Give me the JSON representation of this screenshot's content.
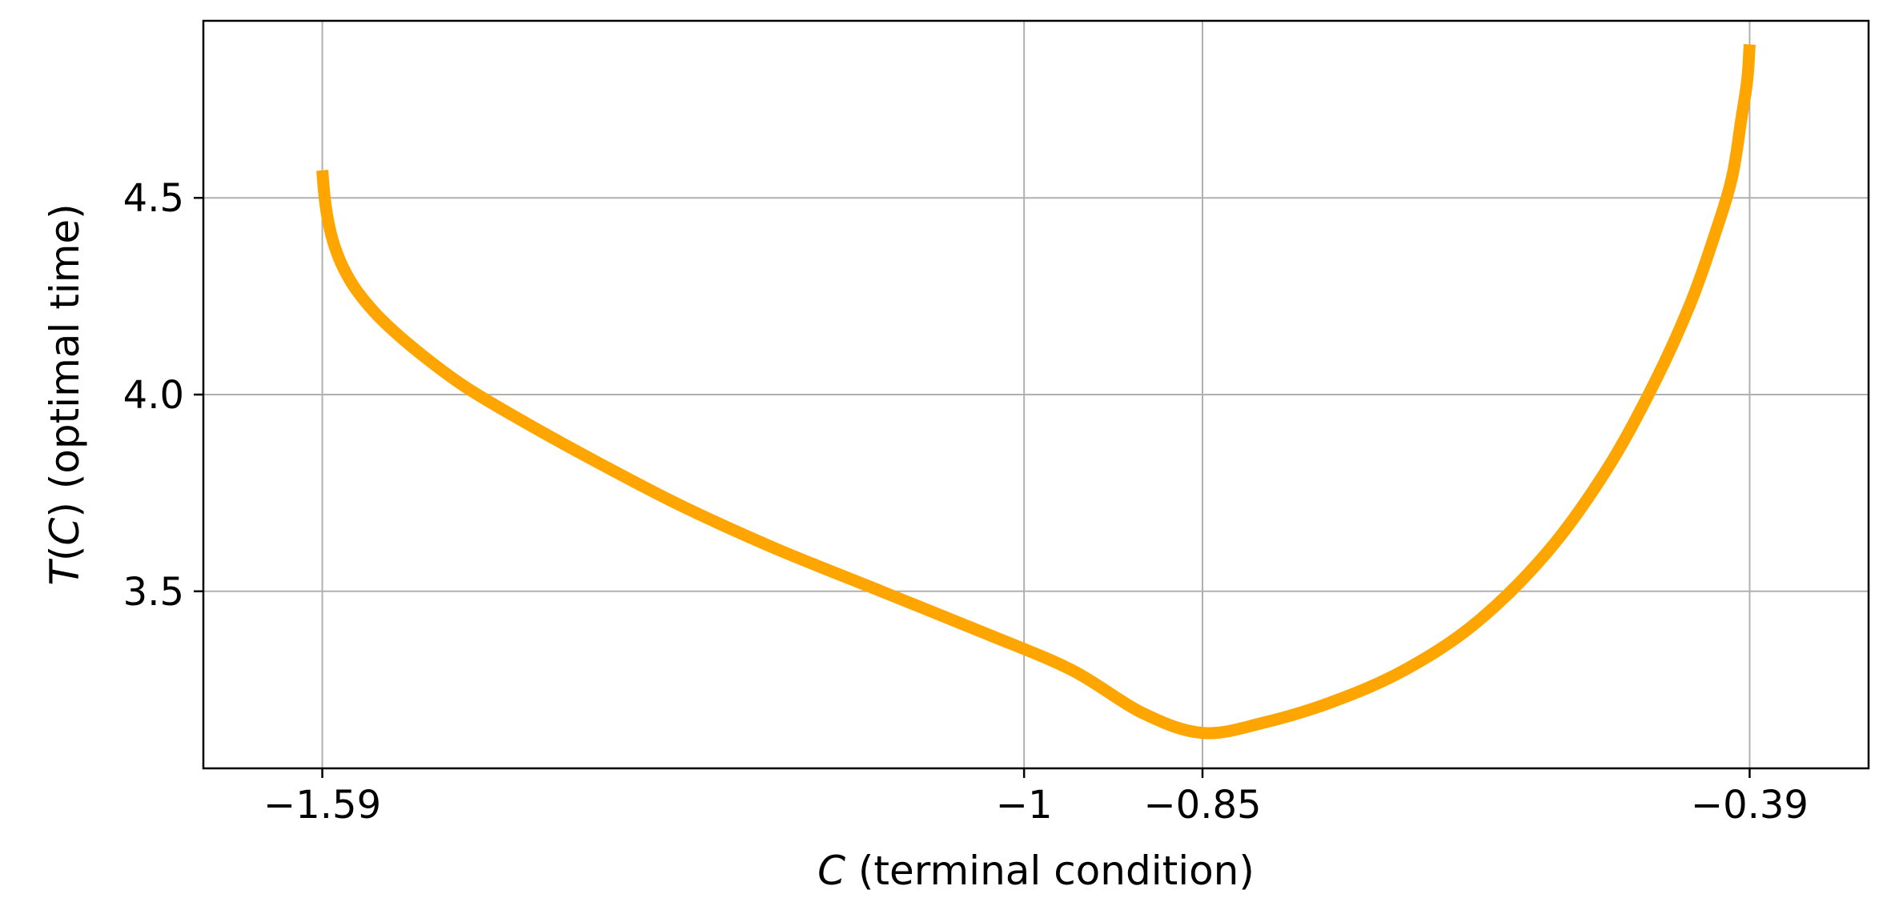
{
  "chart_data": {
    "type": "line",
    "xlabel": {
      "var": "C",
      "rest": " (terminal condition)"
    },
    "ylabel": {
      "var": "T",
      "open": "(",
      "var2": "C",
      "close": ")",
      "rest": " (optimal time)"
    },
    "xlim": [
      -1.69,
      -0.29
    ],
    "ylim": [
      3.05,
      4.95
    ],
    "xticks": [
      -1.59,
      -1.0,
      -0.85,
      -0.39
    ],
    "xtick_labels": [
      "−1.59",
      "−1",
      "−0.85",
      "−0.39"
    ],
    "yticks": [
      3.5,
      4.0,
      4.5
    ],
    "ytick_labels": [
      "3.5",
      "4.0",
      "4.5"
    ],
    "grid": true,
    "series": [
      {
        "color": "#FFA500",
        "x": [
          -1.59,
          -1.588,
          -1.585,
          -1.58,
          -1.572,
          -1.56,
          -1.54,
          -1.51,
          -1.47,
          -1.42,
          -1.36,
          -1.29,
          -1.21,
          -1.12,
          -1.03,
          -0.96,
          -0.9,
          -0.85,
          -0.8,
          -0.74,
          -0.68,
          -0.62,
          -0.56,
          -0.51,
          -0.47,
          -0.44,
          -0.42,
          -0.405,
          -0.397,
          -0.392,
          -0.39
        ],
        "y": [
          4.57,
          4.5,
          4.44,
          4.38,
          4.32,
          4.26,
          4.19,
          4.11,
          4.02,
          3.93,
          3.83,
          3.72,
          3.61,
          3.5,
          3.39,
          3.3,
          3.19,
          3.14,
          3.165,
          3.22,
          3.3,
          3.42,
          3.6,
          3.81,
          4.03,
          4.23,
          4.4,
          4.55,
          4.7,
          4.8,
          4.89
        ]
      }
    ]
  }
}
